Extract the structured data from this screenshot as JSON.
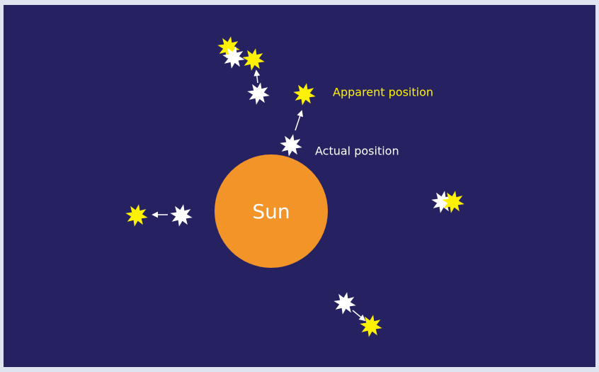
{
  "diagram": {
    "labels": {
      "apparent": "Apparent position",
      "actual": "Actual position",
      "sun": "Sun"
    }
  }
}
